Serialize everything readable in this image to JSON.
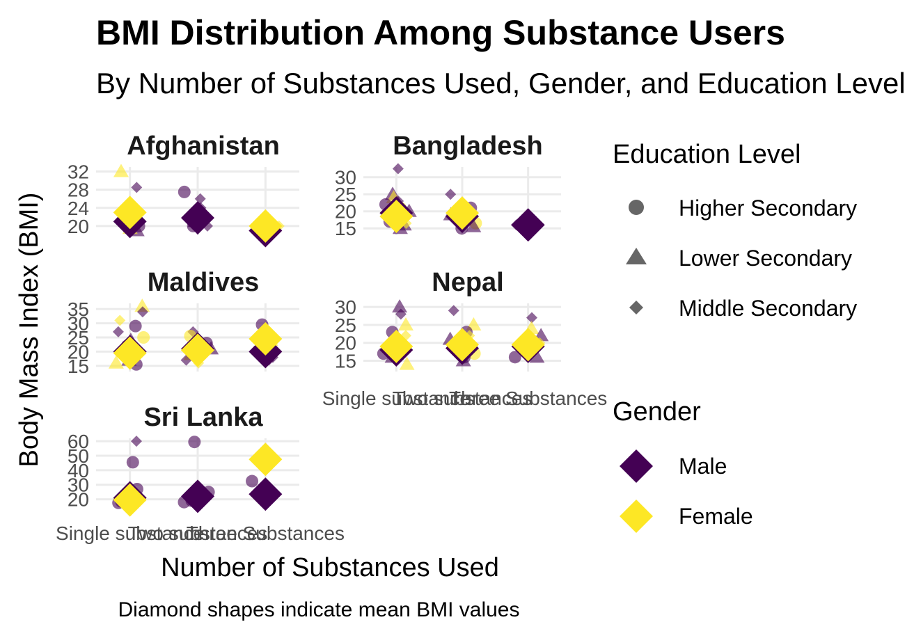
{
  "colors": {
    "male": "#440154",
    "female": "#FDE725",
    "legend_shape": "#666666",
    "grid": "#EBEBEB"
  },
  "chart_data": {
    "type": "scatter",
    "title": "BMI Distribution Among Substance Users",
    "subtitle": "By Number of Substances Used, Gender, and Education Level",
    "xlabel": "Number of Substances Used",
    "ylabel": "Body Mass Index (BMI)",
    "caption": "Diamond shapes indicate mean BMI values",
    "categories": [
      "Single substance",
      "Two substances",
      "Three Substances"
    ],
    "x_tick_labels": [
      "Single substance",
      "Two substances",
      "Three Substances"
    ],
    "legend": {
      "education_title": "Education Level",
      "education": [
        {
          "label": "Higher Secondary",
          "shape": "circle"
        },
        {
          "label": "Lower Secondary",
          "shape": "triangle"
        },
        {
          "label": "Middle Secondary",
          "shape": "diamond-small"
        }
      ],
      "gender_title": "Gender",
      "gender": [
        {
          "label": "Male",
          "color": "#440154"
        },
        {
          "label": "Female",
          "color": "#FDE725"
        }
      ],
      "position": "right"
    },
    "grid": true,
    "panels": [
      {
        "name": "Afghanistan",
        "y_ticks": [
          20,
          24,
          28,
          32
        ],
        "ylim": [
          18,
          33
        ],
        "means": [
          {
            "gender": "Male",
            "x": 0,
            "bmi": 21.0
          },
          {
            "gender": "Female",
            "x": 0,
            "bmi": 23.0
          },
          {
            "gender": "Male",
            "x": 1,
            "bmi": 21.8
          },
          {
            "gender": "Male",
            "x": 2,
            "bmi": 19.0
          },
          {
            "gender": "Female",
            "x": 2,
            "bmi": 20.0
          }
        ],
        "points": [
          {
            "g": "F",
            "e": "LS",
            "x": 0,
            "bmi": 32
          },
          {
            "g": "M",
            "e": "MS",
            "x": 0,
            "bmi": 28.5
          },
          {
            "g": "M",
            "e": "MS",
            "x": 0,
            "bmi": 24.5
          },
          {
            "g": "M",
            "e": "HS",
            "x": 0,
            "bmi": 22
          },
          {
            "g": "M",
            "e": "HS",
            "x": 0,
            "bmi": 21
          },
          {
            "g": "M",
            "e": "HS",
            "x": 0,
            "bmi": 20
          },
          {
            "g": "M",
            "e": "LS",
            "x": 0,
            "bmi": 19
          },
          {
            "g": "F",
            "e": "LS",
            "x": 0,
            "bmi": 19.5
          },
          {
            "g": "M",
            "e": "HS",
            "x": 0,
            "bmi": 19.5
          },
          {
            "g": "F",
            "e": "HS",
            "x": 0,
            "bmi": 21.5
          },
          {
            "g": "M",
            "e": "HS",
            "x": 1,
            "bmi": 27.5
          },
          {
            "g": "M",
            "e": "MS",
            "x": 1,
            "bmi": 26
          },
          {
            "g": "M",
            "e": "MS",
            "x": 1,
            "bmi": 24
          },
          {
            "g": "M",
            "e": "LS",
            "x": 1,
            "bmi": 21
          },
          {
            "g": "M",
            "e": "MS",
            "x": 1,
            "bmi": 20
          },
          {
            "g": "M",
            "e": "HS",
            "x": 1,
            "bmi": 20
          },
          {
            "g": "F",
            "e": "LS",
            "x": 2,
            "bmi": 19
          },
          {
            "g": "M",
            "e": "HS",
            "x": 2,
            "bmi": 19
          },
          {
            "g": "F",
            "e": "MS",
            "x": 2,
            "bmi": 20
          }
        ]
      },
      {
        "name": "Bangladesh",
        "y_ticks": [
          15,
          20,
          25,
          30
        ],
        "ylim": [
          13,
          33
        ],
        "means": [
          {
            "gender": "Male",
            "x": 0,
            "bmi": 19.5
          },
          {
            "gender": "Female",
            "x": 0,
            "bmi": 18.5
          },
          {
            "gender": "Male",
            "x": 1,
            "bmi": 18.5
          },
          {
            "gender": "Female",
            "x": 1,
            "bmi": 19.5
          },
          {
            "gender": "Male",
            "x": 2,
            "bmi": 16.0
          }
        ],
        "points": [
          {
            "g": "M",
            "e": "MS",
            "x": 0,
            "bmi": 32.5
          },
          {
            "g": "M",
            "e": "LS",
            "x": 0,
            "bmi": 25
          },
          {
            "g": "F",
            "e": "LS",
            "x": 0,
            "bmi": 24
          },
          {
            "g": "M",
            "e": "MS",
            "x": 0,
            "bmi": 23
          },
          {
            "g": "M",
            "e": "HS",
            "x": 0,
            "bmi": 22
          },
          {
            "g": "F",
            "e": "HS",
            "x": 0,
            "bmi": 21
          },
          {
            "g": "M",
            "e": "LS",
            "x": 0,
            "bmi": 20
          },
          {
            "g": "M",
            "e": "MS",
            "x": 0,
            "bmi": 18
          },
          {
            "g": "M",
            "e": "HS",
            "x": 0,
            "bmi": 17
          },
          {
            "g": "M",
            "e": "LS",
            "x": 0,
            "bmi": 16
          },
          {
            "g": "F",
            "e": "MS",
            "x": 0,
            "bmi": 16.5
          },
          {
            "g": "M",
            "e": "LS",
            "x": 0,
            "bmi": 15
          },
          {
            "g": "M",
            "e": "MS",
            "x": 1,
            "bmi": 25
          },
          {
            "g": "F",
            "e": "MS",
            "x": 1,
            "bmi": 22.5
          },
          {
            "g": "M",
            "e": "HS",
            "x": 1,
            "bmi": 21
          },
          {
            "g": "F",
            "e": "LS",
            "x": 1,
            "bmi": 20
          },
          {
            "g": "M",
            "e": "LS",
            "x": 1,
            "bmi": 19
          },
          {
            "g": "M",
            "e": "MS",
            "x": 1,
            "bmi": 17
          },
          {
            "g": "F",
            "e": "HS",
            "x": 1,
            "bmi": 16.5
          },
          {
            "g": "M",
            "e": "LS",
            "x": 1,
            "bmi": 15.5
          },
          {
            "g": "M",
            "e": "HS",
            "x": 1,
            "bmi": 15
          },
          {
            "g": "M",
            "e": "LS",
            "x": 2,
            "bmi": 17
          },
          {
            "g": "M",
            "e": "LS",
            "x": 2,
            "bmi": 15
          },
          {
            "g": "M",
            "e": "MS",
            "x": 2,
            "bmi": 16
          }
        ]
      },
      {
        "name": "Maldives",
        "y_ticks": [
          15,
          20,
          25,
          30,
          35
        ],
        "ylim": [
          13,
          37
        ],
        "means": [
          {
            "gender": "Male",
            "x": 0,
            "bmi": 20.0
          },
          {
            "gender": "Female",
            "x": 0,
            "bmi": 19.5
          },
          {
            "gender": "Male",
            "x": 1,
            "bmi": 21.0
          },
          {
            "gender": "Female",
            "x": 1,
            "bmi": 20.5
          },
          {
            "gender": "Male",
            "x": 2,
            "bmi": 20.0
          },
          {
            "gender": "Female",
            "x": 2,
            "bmi": 24.5
          }
        ],
        "points": [
          {
            "g": "F",
            "e": "LS",
            "x": 0,
            "bmi": 36
          },
          {
            "g": "M",
            "e": "MS",
            "x": 0,
            "bmi": 34
          },
          {
            "g": "F",
            "e": "MS",
            "x": 0,
            "bmi": 31
          },
          {
            "g": "M",
            "e": "HS",
            "x": 0,
            "bmi": 29
          },
          {
            "g": "M",
            "e": "MS",
            "x": 0,
            "bmi": 27
          },
          {
            "g": "F",
            "e": "HS",
            "x": 0,
            "bmi": 25
          },
          {
            "g": "M",
            "e": "LS",
            "x": 0,
            "bmi": 24
          },
          {
            "g": "M",
            "e": "HS",
            "x": 0,
            "bmi": 22
          },
          {
            "g": "F",
            "e": "MS",
            "x": 0,
            "bmi": 21
          },
          {
            "g": "M",
            "e": "MS",
            "x": 0,
            "bmi": 19
          },
          {
            "g": "M",
            "e": "LS",
            "x": 0,
            "bmi": 17
          },
          {
            "g": "F",
            "e": "LS",
            "x": 0,
            "bmi": 16
          },
          {
            "g": "M",
            "e": "HS",
            "x": 0,
            "bmi": 15.5
          },
          {
            "g": "M",
            "e": "MS",
            "x": 1,
            "bmi": 27
          },
          {
            "g": "F",
            "e": "HS",
            "x": 1,
            "bmi": 25.5
          },
          {
            "g": "M",
            "e": "HS",
            "x": 1,
            "bmi": 23
          },
          {
            "g": "M",
            "e": "LS",
            "x": 1,
            "bmi": 21
          },
          {
            "g": "F",
            "e": "LS",
            "x": 1,
            "bmi": 19
          },
          {
            "g": "M",
            "e": "MS",
            "x": 1,
            "bmi": 17
          },
          {
            "g": "F",
            "e": "MS",
            "x": 1,
            "bmi": 16
          },
          {
            "g": "M",
            "e": "HS",
            "x": 2,
            "bmi": 29.5
          },
          {
            "g": "F",
            "e": "LS",
            "x": 2,
            "bmi": 24
          },
          {
            "g": "M",
            "e": "MS",
            "x": 2,
            "bmi": 18
          },
          {
            "g": "M",
            "e": "MS",
            "x": 2,
            "bmi": 17
          }
        ]
      },
      {
        "name": "Nepal",
        "y_ticks": [
          15,
          20,
          25,
          30
        ],
        "ylim": [
          12,
          31
        ],
        "means": [
          {
            "gender": "Male",
            "x": 0,
            "bmi": 18.0
          },
          {
            "gender": "Female",
            "x": 0,
            "bmi": 19.0
          },
          {
            "gender": "Male",
            "x": 1,
            "bmi": 18.5
          },
          {
            "gender": "Female",
            "x": 1,
            "bmi": 19.5
          },
          {
            "gender": "Male",
            "x": 2,
            "bmi": 19.0
          },
          {
            "gender": "Female",
            "x": 2,
            "bmi": 19.5
          }
        ],
        "points": [
          {
            "g": "M",
            "e": "LS",
            "x": 0,
            "bmi": 30
          },
          {
            "g": "M",
            "e": "MS",
            "x": 0,
            "bmi": 28
          },
          {
            "g": "F",
            "e": "LS",
            "x": 0,
            "bmi": 25
          },
          {
            "g": "M",
            "e": "HS",
            "x": 0,
            "bmi": 23
          },
          {
            "g": "F",
            "e": "MS",
            "x": 0,
            "bmi": 22
          },
          {
            "g": "M",
            "e": "LS",
            "x": 0,
            "bmi": 21
          },
          {
            "g": "M",
            "e": "MS",
            "x": 0,
            "bmi": 19
          },
          {
            "g": "F",
            "e": "HS",
            "x": 0,
            "bmi": 18
          },
          {
            "g": "M",
            "e": "HS",
            "x": 0,
            "bmi": 17
          },
          {
            "g": "M",
            "e": "LS",
            "x": 0,
            "bmi": 16
          },
          {
            "g": "F",
            "e": "LS",
            "x": 0,
            "bmi": 14
          },
          {
            "g": "M",
            "e": "MS",
            "x": 1,
            "bmi": 29
          },
          {
            "g": "F",
            "e": "LS",
            "x": 1,
            "bmi": 25
          },
          {
            "g": "M",
            "e": "HS",
            "x": 1,
            "bmi": 23
          },
          {
            "g": "F",
            "e": "MS",
            "x": 1,
            "bmi": 22
          },
          {
            "g": "M",
            "e": "LS",
            "x": 1,
            "bmi": 21
          },
          {
            "g": "M",
            "e": "MS",
            "x": 1,
            "bmi": 18
          },
          {
            "g": "F",
            "e": "HS",
            "x": 1,
            "bmi": 17
          },
          {
            "g": "M",
            "e": "HS",
            "x": 1,
            "bmi": 16
          },
          {
            "g": "M",
            "e": "LS",
            "x": 1,
            "bmi": 15
          },
          {
            "g": "M",
            "e": "MS",
            "x": 2,
            "bmi": 27
          },
          {
            "g": "F",
            "e": "LS",
            "x": 2,
            "bmi": 24
          },
          {
            "g": "M",
            "e": "LS",
            "x": 2,
            "bmi": 22
          },
          {
            "g": "F",
            "e": "MS",
            "x": 2,
            "bmi": 20
          },
          {
            "g": "M",
            "e": "HS",
            "x": 2,
            "bmi": 16
          },
          {
            "g": "M",
            "e": "LS",
            "x": 2,
            "bmi": 16
          }
        ]
      },
      {
        "name": "Sri Lanka",
        "y_ticks": [
          20,
          30,
          40,
          50,
          60
        ],
        "ylim": [
          15,
          62
        ],
        "means": [
          {
            "gender": "Male",
            "x": 0,
            "bmi": 21.0
          },
          {
            "gender": "Female",
            "x": 0,
            "bmi": 19.5
          },
          {
            "gender": "Male",
            "x": 1,
            "bmi": 22.0
          },
          {
            "gender": "Male",
            "x": 2,
            "bmi": 23.5
          },
          {
            "gender": "Female",
            "x": 2,
            "bmi": 47.5
          }
        ],
        "points": [
          {
            "g": "M",
            "e": "MS",
            "x": 0,
            "bmi": 60
          },
          {
            "g": "M",
            "e": "HS",
            "x": 0,
            "bmi": 45.5
          },
          {
            "g": "M",
            "e": "HS",
            "x": 0,
            "bmi": 27
          },
          {
            "g": "M",
            "e": "HS",
            "x": 0,
            "bmi": 22
          },
          {
            "g": "F",
            "e": "HS",
            "x": 0,
            "bmi": 20.5
          },
          {
            "g": "M",
            "e": "HS",
            "x": 0,
            "bmi": 18.5
          },
          {
            "g": "M",
            "e": "HS",
            "x": 0,
            "bmi": 17.5
          },
          {
            "g": "M",
            "e": "HS",
            "x": 1,
            "bmi": 59.5
          },
          {
            "g": "M",
            "e": "HS",
            "x": 1,
            "bmi": 25
          },
          {
            "g": "M",
            "e": "HS",
            "x": 1,
            "bmi": 21
          },
          {
            "g": "M",
            "e": "HS",
            "x": 1,
            "bmi": 19
          },
          {
            "g": "M",
            "e": "HS",
            "x": 1,
            "bmi": 18
          },
          {
            "g": "M",
            "e": "HS",
            "x": 2,
            "bmi": 32.5
          },
          {
            "g": "M",
            "e": "HS",
            "x": 2,
            "bmi": 28
          },
          {
            "g": "M",
            "e": "HS",
            "x": 2,
            "bmi": 20
          }
        ]
      }
    ]
  }
}
